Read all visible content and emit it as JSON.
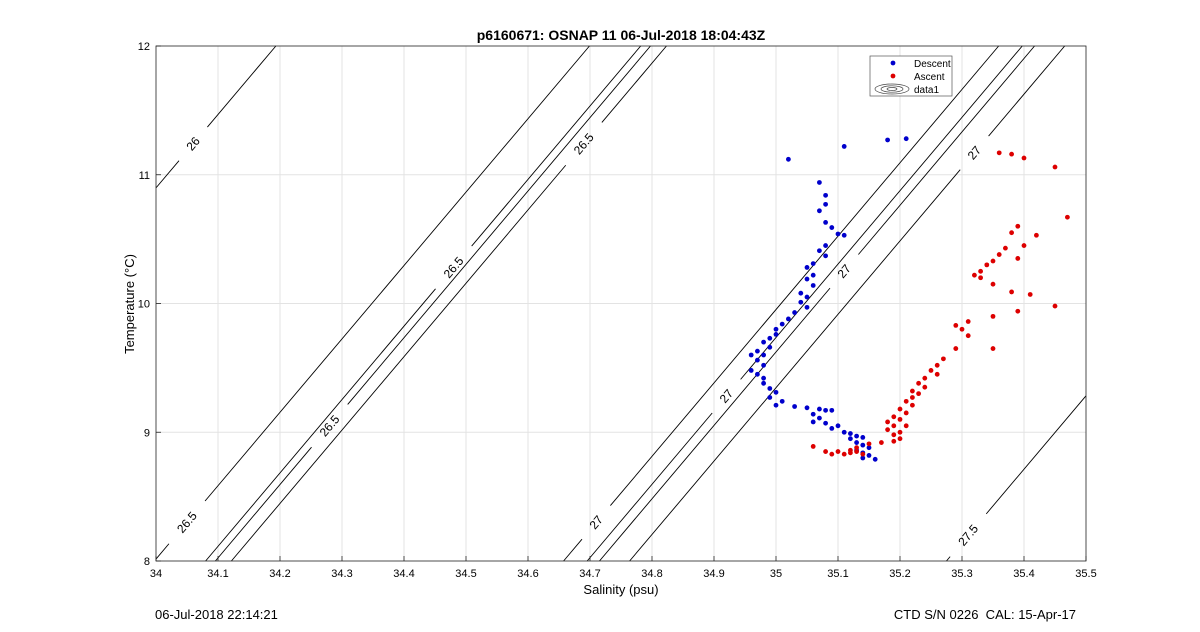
{
  "footer": {
    "left": "06-Jul-2018 22:14:21",
    "right": "CTD S/N 0226  CAL: 15-Apr-17"
  },
  "chart_data": {
    "type": "scatter",
    "title": "p6160671: OSNAP 11 06-Jul-2018 18:04:43Z",
    "xlabel": "Salinity (psu)",
    "ylabel": "Temperature (°C)",
    "xlim": [
      34,
      35.5
    ],
    "ylim": [
      8,
      12
    ],
    "xticks": [
      34,
      34.1,
      34.2,
      34.3,
      34.4,
      34.5,
      34.6,
      34.7,
      34.8,
      34.9,
      35,
      35.1,
      35.2,
      35.3,
      35.4,
      35.5
    ],
    "xtick_labels": [
      "34",
      "34.1",
      "34.2",
      "34.3",
      "34.4",
      "34.5",
      "34.6",
      "34.7",
      "34.8",
      "34.9",
      "35",
      "35.1",
      "35.2",
      "35.3",
      "35.4",
      "35.5"
    ],
    "yticks": [
      8,
      9,
      10,
      11,
      12
    ],
    "ytick_labels": [
      "8",
      "9",
      "10",
      "11",
      "12"
    ],
    "grid": true,
    "legend": {
      "position": "top-right",
      "entries": [
        "Descent",
        "Ascent",
        "data1"
      ]
    },
    "colors": {
      "descent": "#0000cc",
      "ascent": "#dd0000",
      "contour": "#000000",
      "grid": "#e3e3e3"
    },
    "series": [
      {
        "name": "Descent",
        "color": "#0000cc",
        "points": [
          [
            35.02,
            11.12
          ],
          [
            35.11,
            11.22
          ],
          [
            35.18,
            11.27
          ],
          [
            35.21,
            11.28
          ],
          [
            35.07,
            10.94
          ],
          [
            35.08,
            10.84
          ],
          [
            35.08,
            10.77
          ],
          [
            35.07,
            10.72
          ],
          [
            35.08,
            10.63
          ],
          [
            35.09,
            10.59
          ],
          [
            35.1,
            10.54
          ],
          [
            35.11,
            10.53
          ],
          [
            35.08,
            10.45
          ],
          [
            35.07,
            10.41
          ],
          [
            35.08,
            10.37
          ],
          [
            35.06,
            10.31
          ],
          [
            35.05,
            10.28
          ],
          [
            35.06,
            10.22
          ],
          [
            35.05,
            10.19
          ],
          [
            35.06,
            10.14
          ],
          [
            35.04,
            10.08
          ],
          [
            35.05,
            10.05
          ],
          [
            35.04,
            10.01
          ],
          [
            35.05,
            9.97
          ],
          [
            35.03,
            9.93
          ],
          [
            35.02,
            9.88
          ],
          [
            35.01,
            9.84
          ],
          [
            35.0,
            9.8
          ],
          [
            35.0,
            9.76
          ],
          [
            34.99,
            9.73
          ],
          [
            34.98,
            9.7
          ],
          [
            34.99,
            9.66
          ],
          [
            34.97,
            9.63
          ],
          [
            34.98,
            9.6
          ],
          [
            34.96,
            9.6
          ],
          [
            34.97,
            9.56
          ],
          [
            34.98,
            9.52
          ],
          [
            34.96,
            9.48
          ],
          [
            34.97,
            9.45
          ],
          [
            34.98,
            9.42
          ],
          [
            34.98,
            9.38
          ],
          [
            34.99,
            9.34
          ],
          [
            35.0,
            9.31
          ],
          [
            34.99,
            9.27
          ],
          [
            35.01,
            9.24
          ],
          [
            35.0,
            9.21
          ],
          [
            35.03,
            9.2
          ],
          [
            35.05,
            9.19
          ],
          [
            35.07,
            9.18
          ],
          [
            35.08,
            9.17
          ],
          [
            35.09,
            9.17
          ],
          [
            35.06,
            9.14
          ],
          [
            35.07,
            9.11
          ],
          [
            35.06,
            9.08
          ],
          [
            35.08,
            9.07
          ],
          [
            35.1,
            9.05
          ],
          [
            35.09,
            9.03
          ],
          [
            35.11,
            9.0
          ],
          [
            35.12,
            8.99
          ],
          [
            35.13,
            8.97
          ],
          [
            35.14,
            8.96
          ],
          [
            35.12,
            8.95
          ],
          [
            35.13,
            8.92
          ],
          [
            35.14,
            8.9
          ],
          [
            35.15,
            8.88
          ],
          [
            35.13,
            8.86
          ],
          [
            35.14,
            8.84
          ],
          [
            35.15,
            8.82
          ],
          [
            35.14,
            8.8
          ],
          [
            35.16,
            8.79
          ]
        ]
      },
      {
        "name": "Ascent",
        "color": "#dd0000",
        "points": [
          [
            35.36,
            11.17
          ],
          [
            35.38,
            11.16
          ],
          [
            35.4,
            11.13
          ],
          [
            35.45,
            11.06
          ],
          [
            35.47,
            10.67
          ],
          [
            35.39,
            10.6
          ],
          [
            35.38,
            10.55
          ],
          [
            35.42,
            10.53
          ],
          [
            35.4,
            10.45
          ],
          [
            35.37,
            10.43
          ],
          [
            35.36,
            10.38
          ],
          [
            35.39,
            10.35
          ],
          [
            35.35,
            10.33
          ],
          [
            35.34,
            10.3
          ],
          [
            35.33,
            10.25
          ],
          [
            35.32,
            10.22
          ],
          [
            35.33,
            10.2
          ],
          [
            35.35,
            10.15
          ],
          [
            35.38,
            10.09
          ],
          [
            35.41,
            10.07
          ],
          [
            35.45,
            9.98
          ],
          [
            35.39,
            9.94
          ],
          [
            35.35,
            9.9
          ],
          [
            35.31,
            9.86
          ],
          [
            35.29,
            9.83
          ],
          [
            35.3,
            9.8
          ],
          [
            35.31,
            9.75
          ],
          [
            35.35,
            9.65
          ],
          [
            35.29,
            9.65
          ],
          [
            35.27,
            9.57
          ],
          [
            35.26,
            9.52
          ],
          [
            35.25,
            9.48
          ],
          [
            35.26,
            9.45
          ],
          [
            35.24,
            9.42
          ],
          [
            35.23,
            9.38
          ],
          [
            35.24,
            9.35
          ],
          [
            35.22,
            9.32
          ],
          [
            35.23,
            9.3
          ],
          [
            35.22,
            9.27
          ],
          [
            35.21,
            9.24
          ],
          [
            35.22,
            9.21
          ],
          [
            35.2,
            9.18
          ],
          [
            35.21,
            9.15
          ],
          [
            35.19,
            9.12
          ],
          [
            35.2,
            9.1
          ],
          [
            35.18,
            9.08
          ],
          [
            35.19,
            9.05
          ],
          [
            35.21,
            9.05
          ],
          [
            35.18,
            9.02
          ],
          [
            35.2,
            9.0
          ],
          [
            35.19,
            8.98
          ],
          [
            35.2,
            8.95
          ],
          [
            35.19,
            8.93
          ],
          [
            35.17,
            8.92
          ],
          [
            35.15,
            8.91
          ],
          [
            35.13,
            8.88
          ],
          [
            35.06,
            8.89
          ],
          [
            35.12,
            8.86
          ],
          [
            35.1,
            8.85
          ],
          [
            35.08,
            8.85
          ],
          [
            35.13,
            8.85
          ],
          [
            35.09,
            8.83
          ],
          [
            35.11,
            8.83
          ],
          [
            35.12,
            8.84
          ],
          [
            35.14,
            8.83
          ]
        ]
      }
    ],
    "isopycnals": [
      {
        "label": "26",
        "label_at": [
          34.06,
          11.24
        ]
      },
      {
        "label": "26.5",
        "label_at": [
          34.05,
          8.3
        ]
      },
      {
        "label": "26.5",
        "label_at": [
          34.28,
          9.05
        ]
      },
      {
        "label": "26.5",
        "label_at": [
          34.48,
          10.28
        ]
      },
      {
        "label": "26.5",
        "label_at": [
          34.69,
          11.24
        ]
      },
      {
        "label": "27",
        "label_at": [
          34.71,
          8.3
        ]
      },
      {
        "label": "27",
        "label_at": [
          34.92,
          9.28
        ]
      },
      {
        "label": "27",
        "label_at": [
          35.11,
          10.25
        ]
      },
      {
        "label": "27",
        "label_at": [
          35.32,
          11.17
        ]
      },
      {
        "label": "27.5",
        "label_at": [
          35.31,
          8.2
        ]
      }
    ]
  }
}
